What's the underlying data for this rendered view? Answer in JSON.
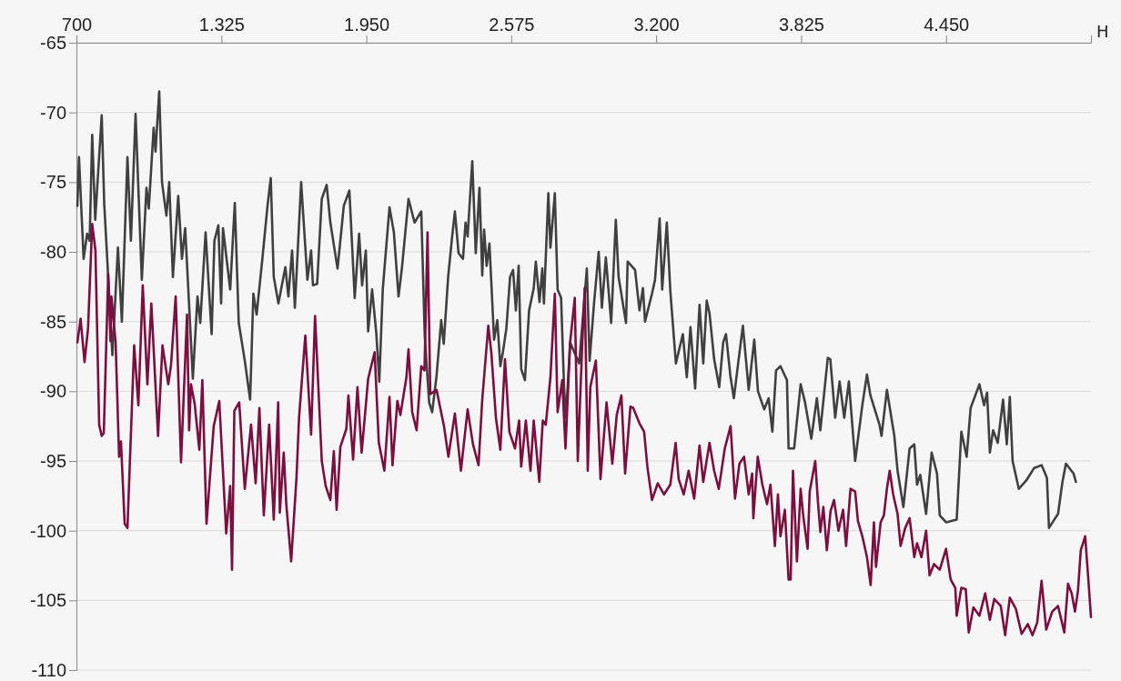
{
  "chart_data": {
    "type": "line",
    "xlabel": "Н",
    "xlim": [
      700,
      5075
    ],
    "xticks": [
      700,
      {
        "value": 1325,
        "label": "1.325"
      },
      {
        "value": 1950,
        "label": "1.950"
      },
      {
        "value": 2575,
        "label": "2.575"
      },
      {
        "value": 3200,
        "label": "3.200"
      },
      {
        "value": 3825,
        "label": "3.825"
      },
      {
        "value": 4450,
        "label": "4.450"
      },
      {
        "value": 5075,
        "label": null
      }
    ],
    "ylim": [
      -110,
      -65
    ],
    "yticks": [
      -110,
      -105,
      -100,
      -95,
      -90,
      -85,
      -80,
      -75,
      -70,
      -65
    ],
    "grid": "y",
    "marker": "none",
    "line_style": "solid",
    "series": [
      {
        "color": "#404040",
        "x": [
          704,
          711,
          731,
          746,
          757,
          768,
          781,
          809,
          820,
          837,
          855,
          879,
          896,
          920,
          935,
          955,
          982,
          1002,
          1012,
          1033,
          1041,
          1057,
          1069,
          1088,
          1100,
          1116,
          1139,
          1155,
          1169,
          1202,
          1222,
          1234,
          1257,
          1283,
          1295,
          1312,
          1324,
          1332,
          1363,
          1383,
          1400,
          1426,
          1449,
          1463,
          1477,
          1503,
          1524,
          1538,
          1551,
          1571,
          1601,
          1614,
          1630,
          1642,
          1669,
          1696,
          1712,
          1720,
          1738,
          1758,
          1779,
          1795,
          1826,
          1853,
          1877,
          1900,
          1919,
          1932,
          1948,
          1958,
          1975,
          1993,
          2006,
          2021,
          2050,
          2069,
          2089,
          2104,
          2132,
          2158,
          2187,
          2202,
          2221,
          2234,
          2253,
          2273,
          2284,
          2303,
          2319,
          2332,
          2348,
          2367,
          2378,
          2387,
          2407,
          2422,
          2438,
          2450,
          2458,
          2469,
          2481,
          2501,
          2515,
          2528,
          2539,
          2554,
          2570,
          2583,
          2595,
          2607,
          2618,
          2634,
          2652,
          2672,
          2681,
          2697,
          2709,
          2716,
          2735,
          2744,
          2763,
          2775,
          2790,
          2803,
          2811,
          2829,
          2868,
          2901,
          2913,
          2932,
          2952,
          2966,
          2983,
          3006,
          3026,
          3038,
          3070,
          3077,
          3109,
          3128,
          3143,
          3152,
          3182,
          3195,
          3215,
          3226,
          3246,
          3261,
          3285,
          3315,
          3332,
          3348,
          3368,
          3387,
          3403,
          3418,
          3430,
          3450,
          3472,
          3489,
          3501,
          3520,
          3535,
          3555,
          3574,
          3599,
          3623,
          3639,
          3666,
          3685,
          3701,
          3717,
          3736,
          3764,
          3771,
          3795,
          3823,
          3842,
          3869,
          3893,
          3908,
          3940,
          3951,
          3972,
          3991,
          4011,
          4031,
          4058,
          4089,
          4109,
          4124,
          4163,
          4172,
          4195,
          4227,
          4241,
          4266,
          4293,
          4313,
          4325,
          4339,
          4364,
          4388,
          4411,
          4423,
          4450,
          4496,
          4516,
          4539,
          4556,
          4594,
          4614,
          4627,
          4639,
          4653,
          4673,
          4696,
          4712,
          4725,
          4737,
          4764,
          4796,
          4830,
          4862,
          4885,
          4894,
          4921,
          4933,
          4952,
          4967,
          5000,
          5010
        ],
        "values": [
          -76.7,
          -73.2,
          -80.5,
          -78.7,
          -79.2,
          -71.6,
          -77.7,
          -70.2,
          -76.6,
          -81.8,
          -87.4,
          -79.7,
          -85.0,
          -73.2,
          -79.2,
          -70.1,
          -82.0,
          -75.4,
          -76.9,
          -71.1,
          -72.8,
          -68.5,
          -75.0,
          -77.4,
          -75.0,
          -81.8,
          -76.0,
          -80.5,
          -78.3,
          -89.1,
          -83.2,
          -85.1,
          -78.6,
          -85.9,
          -79.2,
          -78.1,
          -83.7,
          -78.3,
          -82.7,
          -76.5,
          -85.1,
          -87.8,
          -90.6,
          -83.0,
          -84.5,
          -80.3,
          -76.7,
          -74.7,
          -81.8,
          -83.7,
          -81.1,
          -83.2,
          -79.9,
          -84.0,
          -75.0,
          -82.0,
          -79.9,
          -82.4,
          -82.3,
          -76.2,
          -75.2,
          -77.9,
          -81.2,
          -76.7,
          -75.6,
          -83.3,
          -78.7,
          -82.4,
          -79.9,
          -85.7,
          -82.7,
          -85.8,
          -89.3,
          -82.7,
          -76.8,
          -78.6,
          -83.2,
          -81.1,
          -76.2,
          -77.9,
          -77.1,
          -86.0,
          -90.8,
          -91.5,
          -88.9,
          -84.9,
          -86.6,
          -81.8,
          -79.1,
          -77.1,
          -80.1,
          -80.5,
          -77.9,
          -78.9,
          -73.5,
          -80.1,
          -75.4,
          -81.7,
          -78.4,
          -81.0,
          -79.4,
          -86.3,
          -84.9,
          -88.2,
          -87.2,
          -85.5,
          -81.8,
          -81.3,
          -84.2,
          -81.0,
          -88.4,
          -89.2,
          -84.2,
          -82.6,
          -80.7,
          -83.6,
          -81.2,
          -83.7,
          -75.8,
          -79.7,
          -75.8,
          -82.7,
          -83.3,
          -89.8,
          -91.9,
          -86.5,
          -88.0,
          -81.2,
          -87.8,
          -83.7,
          -80.0,
          -84.0,
          -80.4,
          -85.1,
          -77.7,
          -81.8,
          -85.1,
          -80.7,
          -81.3,
          -84.2,
          -82.6,
          -85.0,
          -83.0,
          -82.0,
          -77.6,
          -82.7,
          -77.9,
          -82.8,
          -88.0,
          -85.9,
          -89.0,
          -85.4,
          -89.8,
          -83.8,
          -88.0,
          -83.5,
          -84.4,
          -87.7,
          -89.7,
          -86.5,
          -85.9,
          -88.9,
          -90.5,
          -87.8,
          -85.3,
          -89.9,
          -86.3,
          -90.0,
          -91.3,
          -90.5,
          -92.9,
          -88.5,
          -88.2,
          -89.2,
          -94.1,
          -94.1,
          -89.5,
          -90.8,
          -93.4,
          -90.5,
          -92.8,
          -87.6,
          -87.7,
          -91.9,
          -89.3,
          -91.9,
          -89.3,
          -95.0,
          -91.0,
          -88.8,
          -90.3,
          -92.4,
          -93.2,
          -89.9,
          -93.2,
          -95.7,
          -98.3,
          -94.1,
          -93.8,
          -96.7,
          -96.0,
          -98.8,
          -94.4,
          -95.9,
          -98.9,
          -99.4,
          -99.2,
          -92.9,
          -94.7,
          -91.2,
          -89.5,
          -91.0,
          -90.1,
          -94.4,
          -92.8,
          -93.7,
          -90.6,
          -93.8,
          -90.4,
          -95.0,
          -97.0,
          -96.4,
          -95.5,
          -95.3,
          -96.2,
          -99.8,
          -99.1,
          -98.8,
          -96.5,
          -95.2,
          -95.9,
          -96.5
        ]
      },
      {
        "color": "#7b0f3f",
        "x": [
          704,
          718,
          735,
          750,
          768,
          782,
          798,
          809,
          818,
          837,
          847,
          851,
          869,
          884,
          892,
          908,
          920,
          949,
          967,
          986,
          1006,
          1023,
          1052,
          1071,
          1096,
          1108,
          1128,
          1151,
          1177,
          1186,
          1194,
          1210,
          1230,
          1243,
          1261,
          1292,
          1316,
          1346,
          1363,
          1371,
          1381,
          1402,
          1426,
          1453,
          1473,
          1489,
          1508,
          1531,
          1551,
          1570,
          1577,
          1594,
          1605,
          1626,
          1649,
          1660,
          1687,
          1712,
          1729,
          1758,
          1775,
          1795,
          1810,
          1822,
          1838,
          1864,
          1873,
          1893,
          1912,
          1930,
          1958,
          1986,
          2004,
          2028,
          2050,
          2063,
          2084,
          2097,
          2123,
          2132,
          2148,
          2167,
          2187,
          2201,
          2214,
          2226,
          2253,
          2285,
          2304,
          2332,
          2358,
          2387,
          2410,
          2434,
          2450,
          2476,
          2489,
          2509,
          2528,
          2548,
          2567,
          2591,
          2609,
          2618,
          2638,
          2658,
          2672,
          2696,
          2711,
          2724,
          2744,
          2763,
          2775,
          2795,
          2809,
          2829,
          2849,
          2862,
          2881,
          2892,
          2905,
          2916,
          2940,
          2960,
          2986,
          3011,
          3030,
          3050,
          3066,
          3089,
          3101,
          3128,
          3148,
          3162,
          3182,
          3207,
          3234,
          3261,
          3284,
          3297,
          3319,
          3340,
          3364,
          3387,
          3403,
          3430,
          3450,
          3470,
          3496,
          3521,
          3540,
          3559,
          3579,
          3599,
          3614,
          3619,
          3638,
          3658,
          3678,
          3693,
          3712,
          3725,
          3736,
          3755,
          3771,
          3780,
          3790,
          3807,
          3823,
          3834,
          3853,
          3862,
          3886,
          3897,
          3908,
          3921,
          3936,
          3952,
          3967,
          3986,
          4006,
          4019,
          4038,
          4058,
          4070,
          4089,
          4109,
          4125,
          4139,
          4148,
          4168,
          4182,
          4195,
          4207,
          4222,
          4241,
          4254,
          4274,
          4293,
          4313,
          4325,
          4344,
          4364,
          4379,
          4398,
          4423,
          4450,
          4470,
          4490,
          4496,
          4516,
          4535,
          4548,
          4568,
          4594,
          4619,
          4639,
          4658,
          4686,
          4705,
          4725,
          4751,
          4776,
          4803,
          4823,
          4843,
          4862,
          4882,
          4908,
          4933,
          4960,
          4976,
          4992,
          5006,
          5019,
          5031,
          5050,
          5065,
          5075
        ],
        "values": [
          -86.5,
          -84.8,
          -87.9,
          -85.5,
          -78.0,
          -79.9,
          -92.4,
          -93.2,
          -93.0,
          -81.6,
          -86.4,
          -83.2,
          -86.5,
          -94.7,
          -93.6,
          -99.5,
          -99.8,
          -86.7,
          -91.0,
          -82.4,
          -89.5,
          -83.7,
          -93.2,
          -86.7,
          -89.5,
          -88.1,
          -83.2,
          -95.1,
          -84.5,
          -92.8,
          -89.5,
          -90.9,
          -94.2,
          -89.2,
          -99.5,
          -92.5,
          -90.7,
          -100.2,
          -96.8,
          -102.8,
          -91.4,
          -90.8,
          -97.0,
          -92.4,
          -96.6,
          -91.2,
          -98.9,
          -92.4,
          -99.2,
          -90.8,
          -98.7,
          -94.4,
          -98.1,
          -102.2,
          -96.2,
          -91.9,
          -86.0,
          -93.1,
          -84.6,
          -95.0,
          -96.8,
          -97.8,
          -94.3,
          -98.5,
          -94.0,
          -92.7,
          -90.3,
          -94.9,
          -89.7,
          -94.4,
          -89.1,
          -87.2,
          -93.7,
          -95.7,
          -90.4,
          -95.3,
          -90.7,
          -91.7,
          -89.0,
          -87.0,
          -91.5,
          -92.8,
          -88.2,
          -88.5,
          -78.6,
          -90.2,
          -89.9,
          -92.5,
          -94.7,
          -91.6,
          -95.7,
          -91.3,
          -93.8,
          -95.3,
          -90.6,
          -85.3,
          -87.2,
          -91.9,
          -94.2,
          -87.7,
          -92.9,
          -94.1,
          -92.1,
          -95.4,
          -92.1,
          -95.7,
          -92.1,
          -96.5,
          -92.1,
          -92.4,
          -89.0,
          -83.0,
          -91.5,
          -89.2,
          -94.1,
          -86.5,
          -83.3,
          -95.0,
          -86.7,
          -82.6,
          -95.7,
          -89.7,
          -87.8,
          -96.3,
          -90.8,
          -95.2,
          -91.7,
          -90.3,
          -95.9,
          -91.1,
          -91.2,
          -92.3,
          -92.9,
          -95.4,
          -97.8,
          -96.6,
          -97.4,
          -96.7,
          -93.7,
          -96.3,
          -97.4,
          -95.7,
          -97.7,
          -93.9,
          -96.5,
          -93.7,
          -95.7,
          -97.0,
          -94.1,
          -92.5,
          -97.7,
          -95.2,
          -94.7,
          -97.4,
          -95.9,
          -99.1,
          -94.7,
          -96.7,
          -98.1,
          -96.7,
          -101.1,
          -97.4,
          -100.4,
          -98.5,
          -103.5,
          -103.5,
          -95.7,
          -102.2,
          -97.0,
          -98.9,
          -101.3,
          -97.2,
          -95.0,
          -97.8,
          -100.1,
          -98.3,
          -101.4,
          -98.6,
          -97.8,
          -100.0,
          -98.5,
          -101.1,
          -97.0,
          -97.2,
          -99.3,
          -100.4,
          -101.9,
          -103.9,
          -99.4,
          -102.6,
          -99.4,
          -98.9,
          -97.0,
          -95.7,
          -97.4,
          -98.8,
          -101.1,
          -99.8,
          -99.1,
          -101.9,
          -100.9,
          -101.9,
          -100.0,
          -103.2,
          -102.4,
          -102.8,
          -101.3,
          -103.5,
          -104.1,
          -106.1,
          -104.1,
          -104.2,
          -107.3,
          -105.5,
          -106.1,
          -104.5,
          -106.4,
          -104.9,
          -105.4,
          -107.5,
          -104.8,
          -105.6,
          -107.4,
          -106.7,
          -107.5,
          -106.6,
          -103.6,
          -107.1,
          -105.8,
          -105.4,
          -107.3,
          -103.8,
          -104.5,
          -105.8,
          -104.3,
          -101.4,
          -100.4,
          -103.8,
          -106.2
        ]
      }
    ]
  }
}
